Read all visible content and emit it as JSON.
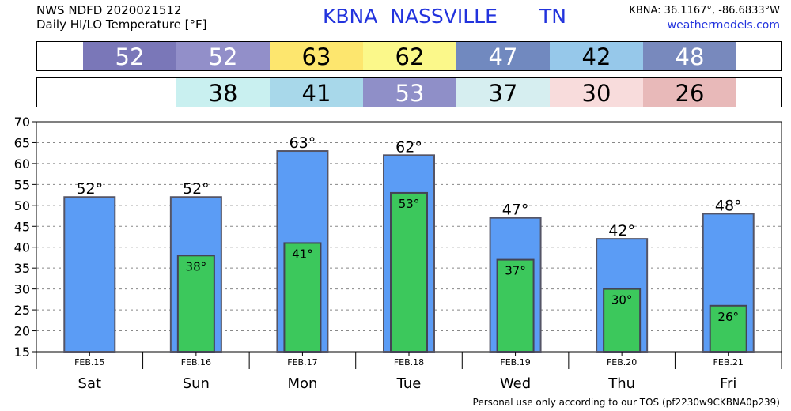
{
  "header": {
    "line1": "NWS NDFD 2020021512",
    "line2": "Daily HI/LO Temperature [°F]",
    "station": "KBNA  NASSVILLE",
    "state": "TN",
    "coords": "KBNA: 36.1167°, -86.6833°W",
    "site": "weathermodels.com"
  },
  "hi_strip": [
    {
      "text": "52",
      "color": "#7a77b8",
      "fg": "#ffffff"
    },
    {
      "text": "52",
      "color": "#928fc9",
      "fg": "#ffffff"
    },
    {
      "text": "63",
      "color": "#fde66e",
      "fg": "#000000"
    },
    {
      "text": "62",
      "color": "#fbf88a",
      "fg": "#000000"
    },
    {
      "text": "47",
      "color": "#7189bf",
      "fg": "#ffffff"
    },
    {
      "text": "42",
      "color": "#96c8ea",
      "fg": "#000000"
    },
    {
      "text": "48",
      "color": "#7889bd",
      "fg": "#ffffff"
    }
  ],
  "lo_strip": [
    {
      "text": "38",
      "color": "#c9f0f0",
      "fg": "#000000"
    },
    {
      "text": "41",
      "color": "#a8d8ea",
      "fg": "#000000"
    },
    {
      "text": "53",
      "color": "#8f8fc8",
      "fg": "#ffffff"
    },
    {
      "text": "37",
      "color": "#d6eef0",
      "fg": "#000000"
    },
    {
      "text": "30",
      "color": "#f8dcdc",
      "fg": "#000000"
    },
    {
      "text": "26",
      "color": "#e8b9b9",
      "fg": "#000000"
    }
  ],
  "chart_data": {
    "type": "bar",
    "categories": [
      "Sat",
      "Sun",
      "Mon",
      "Tue",
      "Wed",
      "Thu",
      "Fri"
    ],
    "dates": [
      "FEB.15",
      "FEB.16",
      "FEB.17",
      "FEB.18",
      "FEB.19",
      "FEB.20",
      "FEB.21"
    ],
    "series": [
      {
        "values": [
          52,
          52,
          63,
          62,
          47,
          42,
          48
        ],
        "color": "#5b9cf5"
      },
      {
        "values": [
          null,
          38,
          41,
          53,
          37,
          30,
          26
        ],
        "color": "#3cc85c"
      }
    ],
    "hi_labels": [
      "52°",
      "52°",
      "63°",
      "62°",
      "47°",
      "42°",
      "48°"
    ],
    "lo_labels": [
      "",
      "38°",
      "41°",
      "53°",
      "37°",
      "30°",
      "26°"
    ],
    "yticks": [
      "15",
      "20",
      "25",
      "30",
      "35",
      "40",
      "45",
      "50",
      "55",
      "60",
      "65",
      "70"
    ],
    "ylim": [
      15,
      70
    ],
    "grid": true
  },
  "footer": "Personal use only according to our TOS (pf2230w9CKBNA0p239)"
}
